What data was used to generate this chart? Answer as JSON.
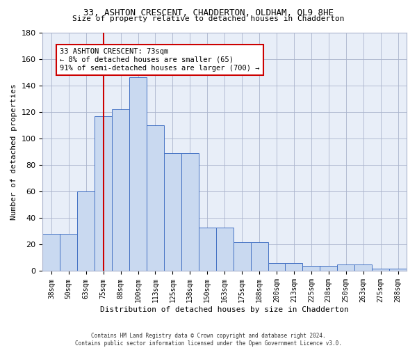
{
  "title1": "33, ASHTON CRESCENT, CHADDERTON, OLDHAM, OL9 8HE",
  "title2": "Size of property relative to detached houses in Chadderton",
  "xlabel": "Distribution of detached houses by size in Chadderton",
  "ylabel": "Number of detached properties",
  "bar_labels": [
    "38sqm",
    "50sqm",
    "63sqm",
    "75sqm",
    "88sqm",
    "100sqm",
    "113sqm",
    "125sqm",
    "138sqm",
    "150sqm",
    "163sqm",
    "175sqm",
    "188sqm",
    "200sqm",
    "213sqm",
    "225sqm",
    "238sqm",
    "250sqm",
    "263sqm",
    "275sqm",
    "288sqm"
  ],
  "bar_values": [
    28,
    28,
    60,
    117,
    122,
    146,
    110,
    89,
    89,
    33,
    33,
    22,
    22,
    6,
    6,
    4,
    4,
    5,
    5,
    2,
    2
  ],
  "bar_color": "#c9d9f0",
  "bar_edge_color": "#4472c4",
  "vline_x": 3,
  "vline_color": "#cc0000",
  "annotation_text": "33 ASHTON CRESCENT: 73sqm\n← 8% of detached houses are smaller (65)\n91% of semi-detached houses are larger (700) →",
  "annotation_box_color": "#ffffff",
  "annotation_box_edge": "#cc0000",
  "ylim": [
    0,
    180
  ],
  "yticks": [
    0,
    20,
    40,
    60,
    80,
    100,
    120,
    140,
    160,
    180
  ],
  "bg_color": "#e8eef8",
  "footer1": "Contains HM Land Registry data © Crown copyright and database right 2024.",
  "footer2": "Contains public sector information licensed under the Open Government Licence v3.0."
}
